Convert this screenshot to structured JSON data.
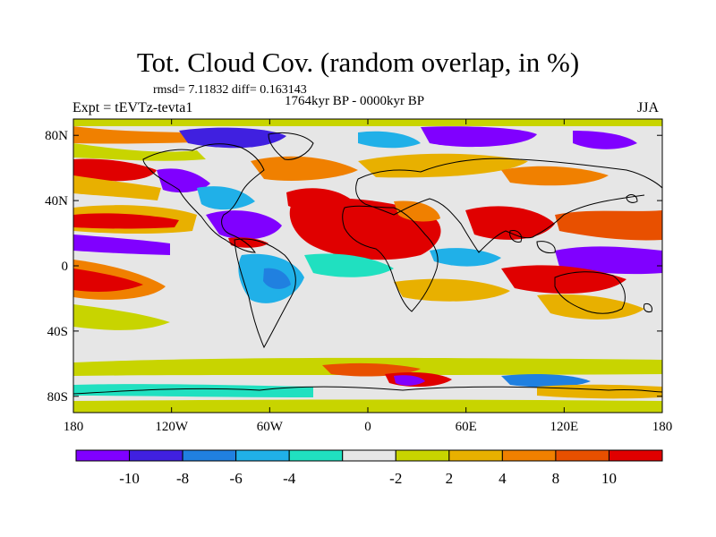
{
  "title": "Tot. Cloud Cov. (random overlap, in %)",
  "stats": "rmsd= 7.11832 diff= 0.163143",
  "period": "1764kyr BP - 0000kyr BP",
  "experiment": "Expt = tEVTz-tevta1",
  "season": "JJA",
  "map": {
    "projection": "cylindrical equidistant",
    "lon_range": [
      -180,
      180
    ],
    "lat_range": [
      -90,
      90
    ],
    "x_ticks": [
      {
        "value": -180,
        "label": "180"
      },
      {
        "value": -120,
        "label": "120W"
      },
      {
        "value": -60,
        "label": "60W"
      },
      {
        "value": 0,
        "label": "0"
      },
      {
        "value": 60,
        "label": "60E"
      },
      {
        "value": 120,
        "label": "120E"
      },
      {
        "value": 180,
        "label": "180"
      }
    ],
    "y_ticks": [
      {
        "value": 80,
        "label": "80N"
      },
      {
        "value": 40,
        "label": "40N"
      },
      {
        "value": 0,
        "label": "0"
      },
      {
        "value": -40,
        "label": "40S"
      },
      {
        "value": -80,
        "label": "80S"
      }
    ],
    "background_color": "#e6e6e6",
    "coastline_color": "#000000"
  },
  "colorbar": {
    "colors": [
      "#8000ff",
      "#4020e0",
      "#2080e0",
      "#20b0e8",
      "#20e0c0",
      "#e6e6e6",
      "#c8d400",
      "#e8b000",
      "#f08000",
      "#e85000",
      "#e00000"
    ],
    "labels": [
      "-10",
      "-8",
      "-6",
      "-4",
      "-2",
      "2",
      "4",
      "8",
      "10"
    ]
  }
}
